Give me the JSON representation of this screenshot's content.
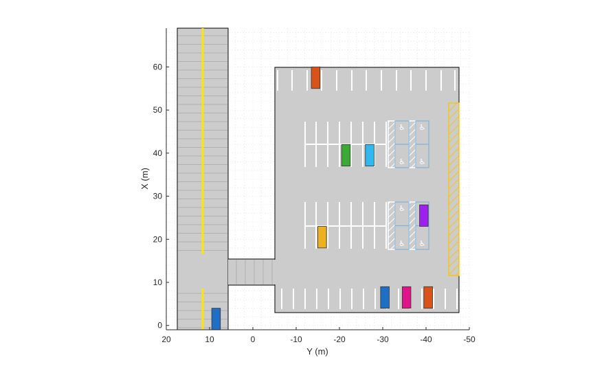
{
  "chart_data": {
    "type": "map",
    "xlabel": "Y (m)",
    "ylabel": "X (m)",
    "x_axis_reversed": true,
    "xlim": [
      20,
      -50
    ],
    "ylim": [
      -1,
      69
    ],
    "xticks": [
      20,
      10,
      0,
      -10,
      -20,
      -30,
      -40,
      -50
    ],
    "yticks": [
      0,
      10,
      20,
      30,
      40,
      50,
      60
    ],
    "xtick_labels": [
      "20",
      "10",
      "0",
      "-10",
      "-20",
      "-30",
      "-40",
      "-50"
    ],
    "ytick_labels": [
      "0",
      "10",
      "20",
      "30",
      "40",
      "50",
      "60"
    ],
    "grid": "dotted",
    "road_color": "#cccccc",
    "center_line_color": "#ffe600",
    "loading_zone_color": "#f5c518",
    "accessible_color": "#7fb2d9",
    "vehicles": [
      {
        "color": "#d95319",
        "y": -14.5,
        "x": 57.5
      },
      {
        "color": "#3aaa35",
        "y": -21.5,
        "x": 39.5
      },
      {
        "color": "#30b8ef",
        "y": -27,
        "x": 39.5
      },
      {
        "color": "#a020f0",
        "y": -39.5,
        "x": 25.5
      },
      {
        "color": "#edb120",
        "y": -16,
        "x": 20.5
      },
      {
        "color": "#1f6fc5",
        "y": -30.5,
        "x": 6.5
      },
      {
        "color": "#e0148a",
        "y": -35.5,
        "x": 6.5
      },
      {
        "color": "#d95319",
        "y": -40.5,
        "x": 6.5
      },
      {
        "color": "#1f6fc5",
        "y": 8.5,
        "x": 1.5
      }
    ]
  }
}
